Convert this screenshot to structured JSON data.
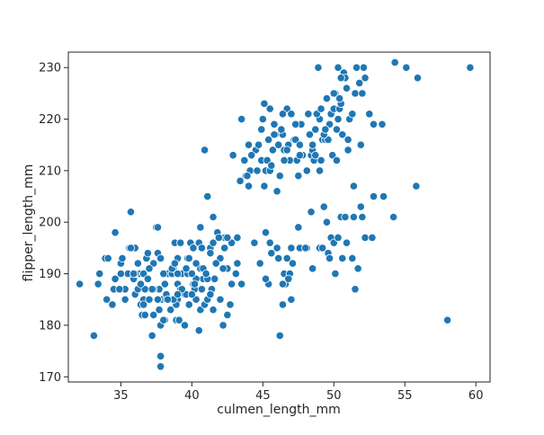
{
  "chart_data": {
    "type": "scatter",
    "title": "",
    "xlabel": "culmen_length_mm",
    "ylabel": "flipper_length_mm",
    "xlim": [
      31.3,
      61.0
    ],
    "ylim": [
      169.0,
      233.0
    ],
    "xticks": [
      35,
      40,
      45,
      50,
      55,
      60
    ],
    "yticks": [
      170,
      180,
      190,
      200,
      210,
      220,
      230
    ],
    "grid": false,
    "legend": "none",
    "color": "#1f77b4",
    "edgecolor": "#ffffff",
    "points": [
      [
        32.1,
        188
      ],
      [
        33.1,
        178
      ],
      [
        33.5,
        190
      ],
      [
        33.9,
        193
      ],
      [
        34.0,
        185
      ],
      [
        34.4,
        184
      ],
      [
        34.5,
        187
      ],
      [
        34.6,
        189
      ],
      [
        34.6,
        198
      ],
      [
        35.0,
        192
      ],
      [
        35.1,
        193
      ],
      [
        35.2,
        187
      ],
      [
        35.3,
        187
      ],
      [
        35.5,
        190
      ],
      [
        35.6,
        195
      ],
      [
        35.7,
        202
      ],
      [
        35.9,
        189
      ],
      [
        36.0,
        186
      ],
      [
        36.0,
        195
      ],
      [
        36.2,
        187
      ],
      [
        36.3,
        190
      ],
      [
        36.4,
        184
      ],
      [
        36.5,
        182
      ],
      [
        36.6,
        185
      ],
      [
        36.6,
        190
      ],
      [
        36.7,
        187
      ],
      [
        36.8,
        193
      ],
      [
        36.9,
        189
      ],
      [
        37.0,
        185
      ],
      [
        37.2,
        178
      ],
      [
        37.3,
        192
      ],
      [
        37.5,
        199
      ],
      [
        37.6,
        194
      ],
      [
        37.7,
        187
      ],
      [
        37.8,
        172
      ],
      [
        37.8,
        174
      ],
      [
        37.8,
        180
      ],
      [
        37.9,
        185
      ],
      [
        38.1,
        181
      ],
      [
        38.1,
        188
      ],
      [
        38.2,
        185
      ],
      [
        38.3,
        190
      ],
      [
        38.6,
        190
      ],
      [
        38.7,
        191
      ],
      [
        38.8,
        196
      ],
      [
        38.9,
        181
      ],
      [
        39.0,
        185
      ],
      [
        39.0,
        188
      ],
      [
        39.1,
        181
      ],
      [
        39.2,
        196
      ],
      [
        39.3,
        190
      ],
      [
        39.5,
        186
      ],
      [
        39.6,
        186
      ],
      [
        39.7,
        193
      ],
      [
        39.8,
        184
      ],
      [
        40.1,
        188
      ],
      [
        40.2,
        187
      ],
      [
        40.3,
        185
      ],
      [
        40.5,
        196
      ],
      [
        40.6,
        183
      ],
      [
        40.7,
        187
      ],
      [
        40.8,
        189
      ],
      [
        40.9,
        184
      ],
      [
        41.0,
        190
      ],
      [
        41.1,
        185
      ],
      [
        41.3,
        195
      ],
      [
        41.4,
        187
      ],
      [
        41.6,
        189
      ],
      [
        41.8,
        198
      ],
      [
        42.0,
        193
      ],
      [
        42.3,
        195
      ],
      [
        42.5,
        182
      ],
      [
        42.7,
        184
      ],
      [
        42.8,
        188
      ],
      [
        43.1,
        190
      ],
      [
        43.2,
        197
      ],
      [
        43.4,
        208
      ],
      [
        43.8,
        209
      ],
      [
        44.1,
        210
      ],
      [
        44.4,
        196
      ],
      [
        44.5,
        214
      ],
      [
        44.9,
        212
      ],
      [
        45.1,
        207
      ],
      [
        45.2,
        210
      ],
      [
        45.3,
        212
      ],
      [
        45.4,
        216
      ],
      [
        45.5,
        210
      ],
      [
        45.7,
        214
      ],
      [
        45.8,
        219
      ],
      [
        46.1,
        215
      ],
      [
        46.2,
        209
      ],
      [
        46.4,
        217
      ],
      [
        46.5,
        214
      ],
      [
        46.8,
        215
      ],
      [
        46.9,
        212
      ],
      [
        47.2,
        216
      ],
      [
        47.3,
        216
      ],
      [
        47.4,
        212
      ],
      [
        47.5,
        209
      ],
      [
        47.6,
        215
      ],
      [
        47.8,
        213
      ],
      [
        48.1,
        210
      ],
      [
        48.2,
        221
      ],
      [
        48.4,
        213
      ],
      [
        48.5,
        214
      ],
      [
        48.6,
        212
      ],
      [
        48.7,
        218
      ],
      [
        49.0,
        220
      ],
      [
        49.1,
        212
      ],
      [
        49.2,
        216
      ],
      [
        49.4,
        216
      ],
      [
        49.5,
        224
      ],
      [
        49.6,
        216
      ],
      [
        49.8,
        221
      ],
      [
        49.9,
        213
      ],
      [
        50.0,
        222
      ],
      [
        50.1,
        225
      ],
      [
        50.2,
        218
      ],
      [
        50.4,
        222
      ],
      [
        50.5,
        223
      ],
      [
        50.7,
        229
      ],
      [
        50.8,
        228
      ],
      [
        51.1,
        220
      ],
      [
        51.3,
        221
      ],
      [
        51.5,
        225
      ],
      [
        52.1,
        230
      ],
      [
        52.2,
        228
      ],
      [
        52.5,
        221
      ],
      [
        52.8,
        219
      ],
      [
        53.4,
        219
      ],
      [
        54.3,
        231
      ],
      [
        55.1,
        230
      ],
      [
        55.9,
        228
      ],
      [
        59.6,
        230
      ],
      [
        43.9,
        209
      ],
      [
        44.2,
        213
      ],
      [
        45.0,
        220
      ],
      [
        45.6,
        211
      ],
      [
        46.3,
        218
      ],
      [
        46.7,
        222
      ],
      [
        47.0,
        221
      ],
      [
        47.7,
        219
      ],
      [
        48.3,
        217
      ],
      [
        48.8,
        221
      ],
      [
        49.3,
        217
      ],
      [
        49.7,
        219
      ],
      [
        50.3,
        220
      ],
      [
        50.6,
        217
      ],
      [
        51.0,
        216
      ],
      [
        51.8,
        227
      ],
      [
        45.1,
        223
      ],
      [
        43.5,
        220
      ],
      [
        44.7,
        215
      ],
      [
        46.0,
        206
      ],
      [
        50.5,
        228
      ],
      [
        52.0,
        225
      ],
      [
        48.9,
        230
      ],
      [
        50.3,
        230
      ],
      [
        44.0,
        207
      ],
      [
        42.9,
        213
      ],
      [
        46.2,
        178
      ],
      [
        46.4,
        184
      ],
      [
        46.5,
        190
      ],
      [
        46.6,
        188
      ],
      [
        46.7,
        193
      ],
      [
        46.9,
        190
      ],
      [
        47.0,
        185
      ],
      [
        47.5,
        199
      ],
      [
        47.6,
        195
      ],
      [
        48.1,
        195
      ],
      [
        48.4,
        202
      ],
      [
        48.5,
        191
      ],
      [
        49.0,
        195
      ],
      [
        49.2,
        195
      ],
      [
        49.3,
        203
      ],
      [
        49.5,
        200
      ],
      [
        49.6,
        194
      ],
      [
        49.7,
        193
      ],
      [
        49.8,
        197
      ],
      [
        50.0,
        196
      ],
      [
        50.1,
        190
      ],
      [
        50.3,
        197
      ],
      [
        50.5,
        201
      ],
      [
        50.6,
        193
      ],
      [
        50.8,
        201
      ],
      [
        50.9,
        196
      ],
      [
        51.3,
        193
      ],
      [
        51.4,
        201
      ],
      [
        51.5,
        187
      ],
      [
        51.7,
        191
      ],
      [
        52.0,
        201
      ],
      [
        52.2,
        197
      ],
      [
        52.7,
        197
      ],
      [
        52.8,
        205
      ],
      [
        53.5,
        205
      ],
      [
        54.2,
        201
      ],
      [
        55.8,
        207
      ],
      [
        58.0,
        181
      ],
      [
        45.2,
        198
      ],
      [
        45.4,
        188
      ],
      [
        45.5,
        196
      ],
      [
        45.6,
        194
      ],
      [
        46.0,
        195
      ],
      [
        46.1,
        193
      ],
      [
        46.8,
        189
      ],
      [
        47.1,
        192
      ],
      [
        48.0,
        195
      ],
      [
        51.4,
        207
      ],
      [
        51.9,
        203
      ],
      [
        43.2,
        192
      ],
      [
        42.3,
        197
      ],
      [
        40.9,
        214
      ],
      [
        40.6,
        199
      ],
      [
        41.1,
        205
      ],
      [
        41.5,
        201
      ],
      [
        39.7,
        190
      ],
      [
        40.3,
        189
      ],
      [
        38.9,
        184
      ],
      [
        38.0,
        181
      ],
      [
        37.6,
        199
      ],
      [
        36.9,
        194
      ],
      [
        35.0,
        190
      ],
      [
        36.4,
        188
      ],
      [
        37.3,
        187
      ],
      [
        38.7,
        185
      ],
      [
        39.2,
        187
      ],
      [
        39.8,
        193
      ],
      [
        40.6,
        191
      ],
      [
        41.1,
        189
      ],
      [
        41.5,
        196
      ],
      [
        42.2,
        180
      ],
      [
        42.5,
        191
      ],
      [
        42.8,
        196
      ],
      [
        42.2,
        191
      ],
      [
        41.7,
        192
      ],
      [
        41.3,
        194
      ],
      [
        40.8,
        191
      ],
      [
        40.2,
        188
      ],
      [
        39.6,
        191
      ],
      [
        39.0,
        193
      ],
      [
        38.6,
        191
      ],
      [
        38.2,
        186
      ],
      [
        37.7,
        183
      ],
      [
        37.2,
        187
      ],
      [
        36.7,
        182
      ],
      [
        36.2,
        192
      ],
      [
        35.7,
        195
      ],
      [
        35.3,
        185
      ],
      [
        34.9,
        187
      ],
      [
        36.0,
        190
      ],
      [
        37.0,
        191
      ],
      [
        38.0,
        190
      ],
      [
        39.0,
        190
      ],
      [
        40.0,
        190
      ],
      [
        41.0,
        190
      ],
      [
        37.6,
        185
      ],
      [
        38.5,
        183
      ],
      [
        39.5,
        180
      ],
      [
        40.5,
        179
      ],
      [
        41.5,
        183
      ],
      [
        42.0,
        185
      ],
      [
        43.5,
        188
      ],
      [
        40.7,
        195
      ],
      [
        39.9,
        196
      ],
      [
        38.8,
        192
      ],
      [
        37.8,
        193
      ],
      [
        36.6,
        184
      ],
      [
        35.9,
        190
      ],
      [
        34.1,
        193
      ],
      [
        33.4,
        188
      ],
      [
        37.3,
        182
      ],
      [
        38.3,
        185
      ],
      [
        39.3,
        187
      ],
      [
        40.3,
        192
      ],
      [
        41.3,
        186
      ],
      [
        40.1,
        195
      ],
      [
        41.9,
        197
      ],
      [
        42.5,
        197
      ],
      [
        40.0,
        186
      ],
      [
        39.0,
        186
      ],
      [
        44.8,
        192
      ],
      [
        45.2,
        189
      ],
      [
        46.4,
        188
      ],
      [
        47.0,
        195
      ],
      [
        48.7,
        213
      ],
      [
        49.0,
        210
      ],
      [
        49.4,
        218
      ],
      [
        50.2,
        212
      ],
      [
        51.0,
        214
      ],
      [
        51.9,
        215
      ],
      [
        46.5,
        212
      ],
      [
        45.9,
        217
      ],
      [
        44.6,
        210
      ],
      [
        43.7,
        212
      ],
      [
        45.5,
        222
      ],
      [
        46.4,
        221
      ],
      [
        47.3,
        219
      ],
      [
        48.2,
        221
      ],
      [
        49.1,
        222
      ],
      [
        50.0,
        225
      ],
      [
        50.9,
        226
      ],
      [
        51.6,
        230
      ],
      [
        50.4,
        224
      ],
      [
        49.4,
        218
      ],
      [
        48.5,
        215
      ],
      [
        47.6,
        213
      ],
      [
        46.7,
        214
      ],
      [
        45.8,
        217
      ],
      [
        44.9,
        218
      ],
      [
        44.0,
        215
      ]
    ]
  }
}
